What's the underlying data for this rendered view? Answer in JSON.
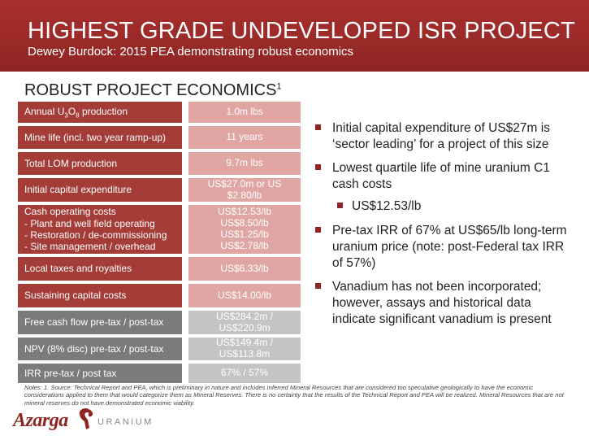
{
  "header": {
    "title": "HIGHEST GRADE UNDEVELOPED ISR PROJECT",
    "subtitle": "Dewey Burdock: 2015 PEA demonstrating robust economics"
  },
  "section": {
    "title": "ROBUST PROJECT ECONOMICS",
    "footnote_mark": "1"
  },
  "table": {
    "rows": [
      {
        "label_pre": "Annual U",
        "label_sub1": "3",
        "label_mid": "O",
        "label_sub2": "8",
        "label_post": " production",
        "value": "1.0m lbs"
      },
      {
        "label": "Mine life (incl. two year ramp-up)",
        "value": "11 years"
      },
      {
        "label": "Total LOM production",
        "value": "9.7m lbs"
      },
      {
        "label": "Initial capital expenditure",
        "value": "US$27.0m or US $2.80/lb"
      },
      {
        "label_lines": [
          "Cash operating costs",
          " - Plant and well field operating",
          " - Restoration / de-commissioning",
          " - Site management / overhead"
        ],
        "value_lines": [
          "US$12.53/lb",
          "US$8.50/lb",
          "US$1.25/lb",
          "US$2.78/lb"
        ]
      },
      {
        "label": "Local taxes and royalties",
        "value": "US$6.33/lb"
      },
      {
        "label": "Sustaining capital costs",
        "value": "US$14.00/lb"
      },
      {
        "label": "Free cash flow pre-tax / post-tax",
        "value_lines": [
          "US$284.2m /",
          "US$220.9m"
        ]
      },
      {
        "label": "NPV (8% disc) pre-tax / post-tax",
        "value_lines": [
          "US$149.4m /",
          "US$113.8m"
        ]
      },
      {
        "label": "IRR pre-tax / post tax",
        "value": "67% / 57%"
      }
    ]
  },
  "bullets": {
    "b1": "Initial capital expenditure of US$27m is ‘sector leading’ for a project of this size",
    "b2": "Lowest quartile life of mine uranium C1 cash costs",
    "b2_sub": "US$12.53/lb",
    "b3": "Pre-tax IRR of 67% at US$65/lb long-term uranium price (note: post-Federal tax IRR of 57%)",
    "b4": "Vanadium has not been incorporated; however, assays and historical data indicate significant vanadium is present"
  },
  "notes": "Notes: 1. Source: Technical Report and PEA, which is preliminary in nature and includes Inferred Mineral Resources that are considered too speculative geologically to have the economic considerations applied to them that would categorize them as Mineral Reserves. There is no certainty that the results of the Technical Report and PEA will be realized. Mineral Resources that are not mineral reserves do not have demonstrated economic viability.",
  "logo": {
    "name": "Azarga",
    "tagline": "URANIUM",
    "icon": "ram-head-icon"
  },
  "colors": {
    "header": "#9e2b29",
    "row_label_red": "#a43c38",
    "row_value_red": "#e0a6a4",
    "row_label_grey": "#7b7b7b",
    "row_value_grey": "#c4c4c4",
    "bullet": "#8e2523"
  }
}
